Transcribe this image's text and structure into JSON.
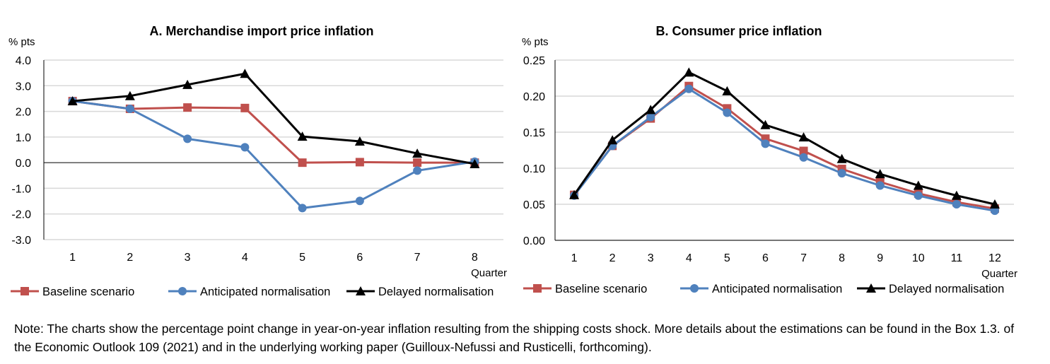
{
  "colors": {
    "baseline": "#c0504d",
    "anticipated": "#4f81bd",
    "delayed": "#000000",
    "grid": "#d9d9d9"
  },
  "chart_data": [
    {
      "type": "line",
      "title": "A. Merchandise import price inflation",
      "ylabel": "% pts",
      "xlabel": "Quarter",
      "categories": [
        "1",
        "2",
        "3",
        "4",
        "5",
        "6",
        "7",
        "8"
      ],
      "ylim": [
        -3,
        4
      ],
      "yticks": [
        "4.0",
        "3.0",
        "2.0",
        "1.0",
        "0.0",
        "-1.0",
        "-2.0",
        "-3.0"
      ],
      "grid": true,
      "legend": "bottom",
      "series": [
        {
          "name": "Baseline scenario",
          "marker": "square",
          "values": [
            2.4,
            2.1,
            2.15,
            2.13,
            0.0,
            0.02,
            0.0,
            0.0
          ]
        },
        {
          "name": "Anticipated normalisation",
          "marker": "circle",
          "values": [
            2.4,
            2.1,
            0.93,
            0.6,
            -1.77,
            -1.49,
            -0.31,
            0.04
          ]
        },
        {
          "name": "Delayed normalisation",
          "marker": "triangle",
          "values": [
            2.4,
            2.6,
            3.04,
            3.47,
            1.02,
            0.83,
            0.36,
            -0.05
          ]
        }
      ]
    },
    {
      "type": "line",
      "title": "B. Consumer price inflation",
      "ylabel": "% pts",
      "xlabel": "Quarter",
      "categories": [
        "1",
        "2",
        "3",
        "4",
        "5",
        "6",
        "7",
        "8",
        "9",
        "10",
        "11",
        "12"
      ],
      "ylim": [
        0,
        0.25
      ],
      "yticks": [
        "0.25",
        "0.20",
        "0.15",
        "0.10",
        "0.05",
        "0.00"
      ],
      "grid": true,
      "legend": "bottom",
      "series": [
        {
          "name": "Baseline scenario",
          "marker": "square",
          "values": [
            0.063,
            0.131,
            0.169,
            0.214,
            0.183,
            0.141,
            0.124,
            0.099,
            0.081,
            0.065,
            0.053,
            0.044
          ]
        },
        {
          "name": "Anticipated normalisation",
          "marker": "circle",
          "values": [
            0.062,
            0.131,
            0.171,
            0.21,
            0.177,
            0.134,
            0.115,
            0.093,
            0.076,
            0.062,
            0.05,
            0.041
          ]
        },
        {
          "name": "Delayed normalisation",
          "marker": "triangle",
          "values": [
            0.063,
            0.139,
            0.181,
            0.233,
            0.207,
            0.16,
            0.143,
            0.113,
            0.092,
            0.076,
            0.062,
            0.05
          ]
        }
      ]
    }
  ],
  "note": "Note: The charts show the percentage point change in year-on-year inflation resulting from the shipping costs shock. More details about the estimations can be found in the Box 1.3. of the Economic Outlook 109 (2021) and in the underlying working paper (Guilloux-Nefussi and Rusticelli, forthcoming)."
}
